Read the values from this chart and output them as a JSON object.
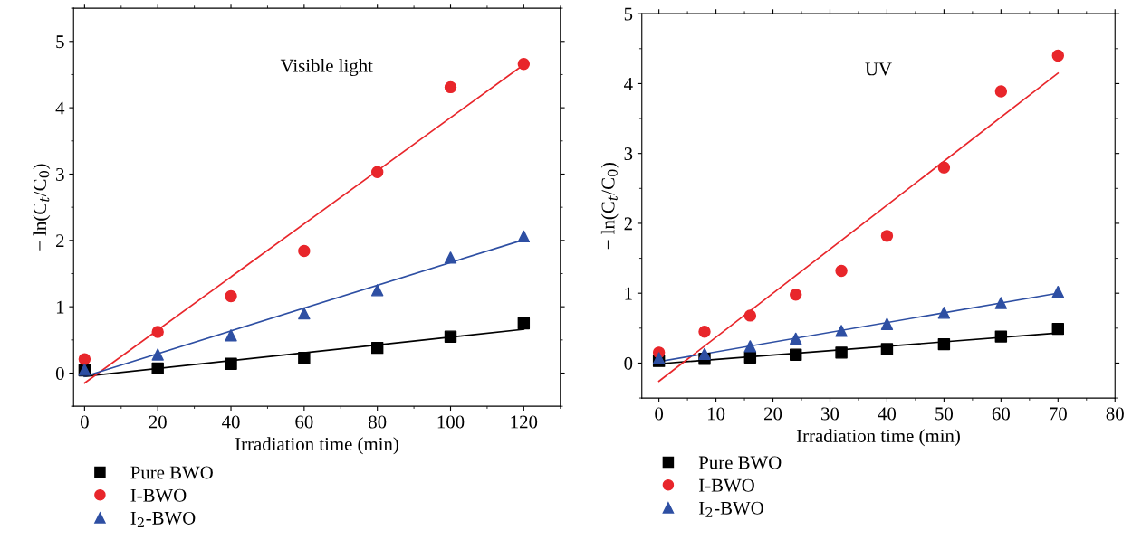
{
  "chart_data": [
    {
      "type": "scatter",
      "xlabel": "Irradiation time (min)",
      "ylabel": "− ln(C$_{t}$/C$_{0}$)",
      "annotations": [
        "Visible light"
      ],
      "x": [
        0,
        20,
        40,
        60,
        80,
        100,
        120
      ],
      "xlim": [
        -3,
        130
      ],
      "ylim": [
        -0.5,
        5.5
      ],
      "xticks": [
        0,
        20,
        40,
        60,
        80,
        100,
        120
      ],
      "yticks": [
        0,
        1,
        2,
        3,
        4,
        5
      ],
      "grid": false,
      "legend": "bottom",
      "series": [
        {
          "name": "Pure BWO",
          "marker": "square",
          "color": "#000000",
          "values": [
            0.04,
            0.07,
            0.14,
            0.23,
            0.38,
            0.55,
            0.75
          ]
        },
        {
          "name": "I-BWO",
          "marker": "circle",
          "color": "#e8262b",
          "values": [
            0.21,
            0.62,
            1.16,
            1.84,
            3.03,
            4.31,
            4.66
          ]
        },
        {
          "name": "I$_{2}$-BWO",
          "marker": "triangle",
          "color": "#2e4fa3",
          "values": [
            0.05,
            0.28,
            0.57,
            0.9,
            1.25,
            1.74,
            2.06
          ]
        },
        {
          "type": "line",
          "marker": "none",
          "color": "#000000",
          "x": [
            0,
            120
          ],
          "values": [
            -0.05,
            0.66
          ]
        },
        {
          "type": "line",
          "marker": "none",
          "color": "#e8262b",
          "x": [
            0,
            120
          ],
          "values": [
            -0.15,
            4.65
          ]
        },
        {
          "type": "line",
          "marker": "none",
          "color": "#2e4fa3",
          "x": [
            0,
            120
          ],
          "values": [
            -0.05,
            2.01
          ]
        }
      ]
    },
    {
      "type": "scatter",
      "xlabel": "Irradiation time (min)",
      "ylabel": "− ln(C$_{t}$/C$_{0}$)",
      "annotations": [
        "UV"
      ],
      "x": [
        0,
        8,
        16,
        24,
        32,
        40,
        50,
        60,
        70
      ],
      "xlim": [
        -3,
        80
      ],
      "ylim": [
        -0.5,
        5
      ],
      "xticks": [
        0,
        10,
        20,
        30,
        40,
        50,
        60,
        70,
        80
      ],
      "yticks": [
        0,
        1,
        2,
        3,
        4,
        5
      ],
      "grid": false,
      "legend": "bottom",
      "series": [
        {
          "name": "Pure BWO",
          "marker": "square",
          "color": "#000000",
          "values": [
            0.03,
            0.06,
            0.08,
            0.12,
            0.15,
            0.2,
            0.27,
            0.38,
            0.49
          ]
        },
        {
          "name": "I-BWO",
          "marker": "circle",
          "color": "#e8262b",
          "values": [
            0.15,
            0.45,
            0.68,
            0.98,
            1.32,
            1.82,
            2.8,
            3.89,
            4.4
          ]
        },
        {
          "name": "I$_{2}$-BWO",
          "marker": "triangle",
          "color": "#2e4fa3",
          "values": [
            0.07,
            0.13,
            0.24,
            0.35,
            0.46,
            0.56,
            0.72,
            0.86,
            1.02
          ]
        },
        {
          "type": "line",
          "marker": "none",
          "color": "#000000",
          "x": [
            0,
            70
          ],
          "values": [
            -0.01,
            0.43
          ]
        },
        {
          "type": "line",
          "marker": "none",
          "color": "#e8262b",
          "x": [
            0,
            70
          ],
          "values": [
            -0.26,
            4.15
          ]
        },
        {
          "type": "line",
          "marker": "none",
          "color": "#2e4fa3",
          "x": [
            0,
            70
          ],
          "values": [
            0.02,
            1.0
          ]
        }
      ]
    }
  ]
}
